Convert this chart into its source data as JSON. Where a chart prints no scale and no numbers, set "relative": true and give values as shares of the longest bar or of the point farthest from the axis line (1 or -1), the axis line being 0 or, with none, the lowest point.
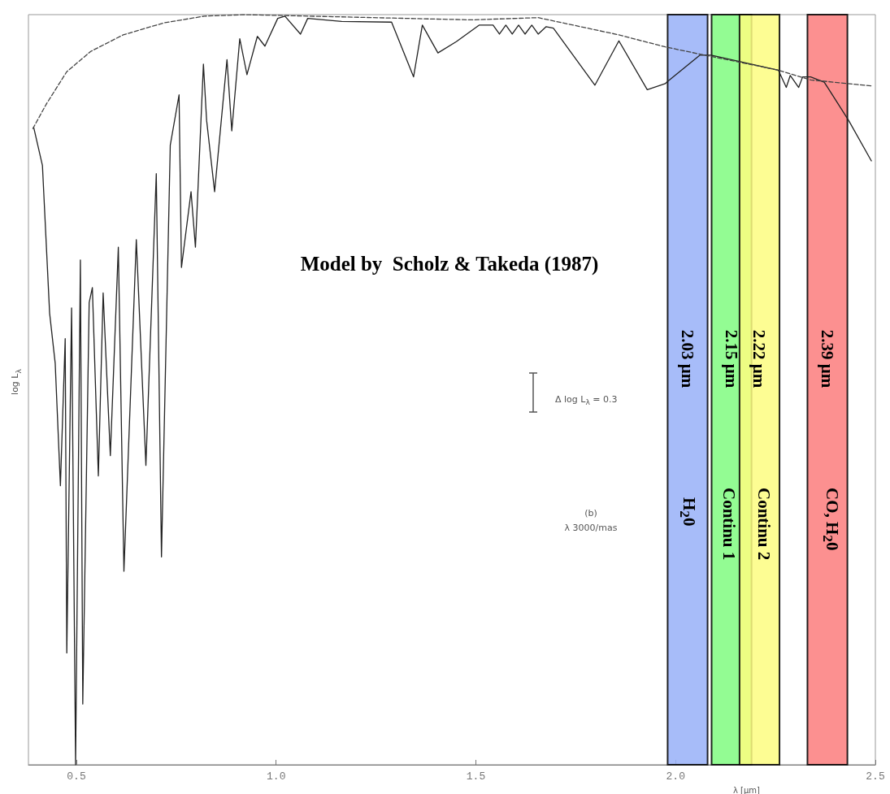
{
  "chart_data": {
    "type": "line",
    "relative": true,
    "xlabel": "λ [µm]",
    "ylabel": "log L$_{λ}$",
    "xlim": [
      0.38,
      2.5
    ],
    "xticks": [
      0.5,
      {
        "value": 1,
        "label": "1.0"
      },
      1.5,
      {
        "value": 2,
        "label": "2.0"
      },
      2.5
    ],
    "grid": false,
    "marker": "none",
    "series": [
      {
        "color": "#222222",
        "line_style": "solid",
        "x": [
          0.393,
          0.415,
          0.433,
          0.447,
          0.46,
          0.472,
          0.476,
          0.488,
          0.498,
          0.51,
          0.516,
          0.532,
          0.54,
          0.555,
          0.567,
          0.585,
          0.605,
          0.619,
          0.65,
          0.674,
          0.7,
          0.713,
          0.735,
          0.757,
          0.763,
          0.787,
          0.798,
          0.818,
          0.826,
          0.846,
          0.877,
          0.889,
          0.909,
          0.927,
          0.953,
          0.972,
          1.004,
          1.022,
          1.061,
          1.079,
          1.164,
          1.289,
          1.344,
          1.366,
          1.405,
          1.451,
          1.508,
          1.543,
          1.559,
          1.575,
          1.591,
          1.607,
          1.623,
          1.64,
          1.656,
          1.676,
          1.694,
          1.798,
          1.858,
          1.929,
          1.974,
          1.978,
          2.061,
          2.089,
          2.257,
          2.277,
          2.287,
          2.308,
          2.318,
          2.338,
          2.372,
          2.433,
          2.49
        ],
        "values": [
          0.85,
          0.799,
          0.602,
          0.535,
          0.372,
          0.568,
          0.149,
          0.609,
          0,
          0.673,
          0.081,
          0.616,
          0.636,
          0.385,
          0.629,
          0.412,
          0.69,
          0.258,
          0.7,
          0.399,
          0.788,
          0.277,
          0.826,
          0.893,
          0.663,
          0.764,
          0.69,
          0.934,
          0.859,
          0.764,
          0.94,
          0.845,
          0.968,
          0.92,
          0.971,
          0.958,
          0.995,
          0.998,
          0.974,
          0.995,
          0.991,
          0.99,
          0.917,
          0.986,
          0.949,
          0.964,
          0.986,
          0.986,
          0.974,
          0.986,
          0.974,
          0.986,
          0.974,
          0.986,
          0.974,
          0.984,
          0.982,
          0.906,
          0.965,
          0.9,
          0.908,
          0.91,
          0.946,
          0.946,
          0.926,
          0.903,
          0.919,
          0.903,
          0.917,
          0.917,
          0.91,
          0.859,
          0.805
        ]
      },
      {
        "color": "#444444",
        "line_style": "dashed",
        "x": [
          0.391,
          0.425,
          0.476,
          0.536,
          0.617,
          0.719,
          0.82,
          0.921,
          1.083,
          1.488,
          1.656,
          1.858,
          1.974,
          2.055,
          2.257,
          2.338,
          2.49
        ],
        "values": [
          0.848,
          0.881,
          0.924,
          0.951,
          0.973,
          0.989,
          0.998,
          1,
          0.998,
          0.993,
          0.996,
          0.973,
          0.957,
          0.948,
          0.926,
          0.913,
          0.905
        ]
      }
    ],
    "bands": [
      {
        "axis": "x",
        "from": 1.98,
        "to": 2.08,
        "label": "2.03 µm",
        "color": "#98b0f8"
      },
      {
        "axis": "x",
        "from": 2.09,
        "to": 2.19,
        "label": "2.15 µm",
        "color": "#80fc80"
      },
      {
        "axis": "x",
        "from": 2.16,
        "to": 2.26,
        "label": "2.22 µm",
        "color": "#fdfd80"
      },
      {
        "axis": "x",
        "from": 2.33,
        "to": 2.43,
        "label": "2.39 µm",
        "color": "#fc7c7c"
      }
    ],
    "annotations": [
      "Model by  Scholz & Takeda (1987)",
      "Δ log L$_{λ}$ = 0.3",
      "(b)",
      "λ 3000/mas",
      "H$_{2}$0",
      "Continu 1",
      "Continu 2",
      "CO, H$_{2}$0"
    ]
  }
}
